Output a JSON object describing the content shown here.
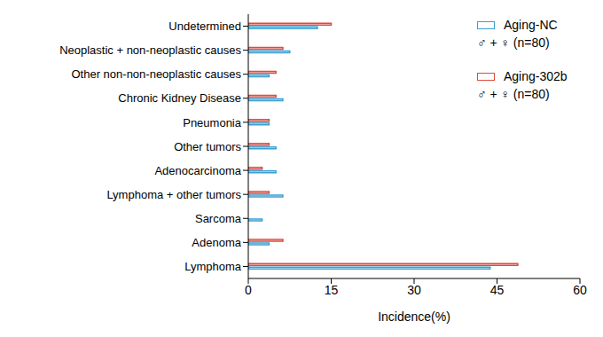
{
  "chart_data": {
    "type": "bar",
    "orientation": "horizontal",
    "x_label": "Incidence(%)",
    "categories": [
      "Undetermined",
      "Neoplastic + non-neoplastic causes",
      "Other non-non-neoplastic causes",
      "Chronic Kidney Disease",
      "Pneumonia",
      "Other tumors",
      "Adenocarcinoma",
      "Lymphoma + other tumors",
      "Sarcoma",
      "Adenoma",
      "Lymphoma"
    ],
    "series": [
      {
        "name": "Aging-NC",
        "color": "#3a9fd1",
        "values": [
          12.5,
          7.5,
          3.75,
          6.25,
          3.75,
          5,
          5,
          6.25,
          2.5,
          3.75,
          43.75
        ]
      },
      {
        "name": "Aging-302b",
        "color": "#e0493c",
        "values": [
          15,
          6.25,
          5,
          5,
          3.75,
          3.75,
          2.5,
          3.75,
          0,
          6.25,
          48.75
        ]
      }
    ],
    "annotations": [
      "♂ + ♀ (n=80)",
      "♂ + ♀ (n=80)"
    ],
    "xlim": [
      0,
      60
    ],
    "xticks": [
      0,
      15,
      30,
      45,
      60
    ],
    "grid": false,
    "legend": "top-right"
  }
}
